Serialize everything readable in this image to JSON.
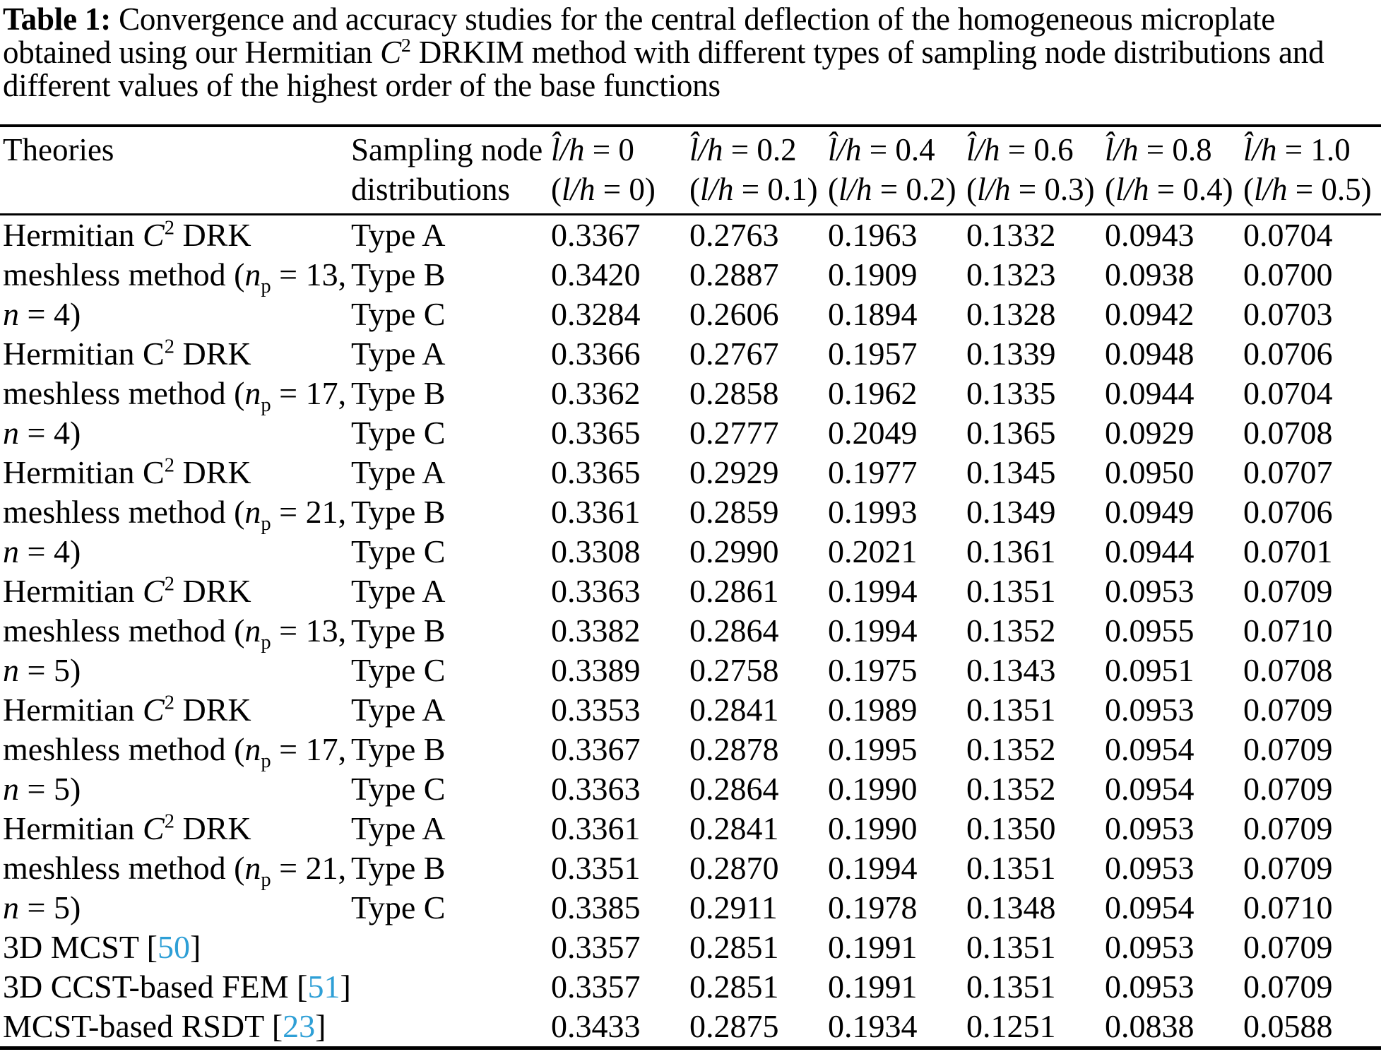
{
  "title": "**Table 1:** Convergence and accuracy studies for the central deflection of the homogeneous microplate obtained using our Hermitian *C*^2^ DRKIM method with different types of sampling node distributions and different values of the highest order of the base functions",
  "colors": {
    "ref_link": "#2e9fd6",
    "text": "#000000",
    "background": "#ffffff"
  },
  "table": {
    "col_headers": {
      "theories": "Theories",
      "sampling_line1": "Sampling node",
      "sampling_line2": "distributions",
      "data_cols": [
        {
          "line1": "*l̂/h* = 0",
          "line2": "(*l/h* = 0)"
        },
        {
          "line1": "*l̂/h* = 0.2",
          "line2": "(*l/h* = 0.1)"
        },
        {
          "line1": "*l̂/h* = 0.4",
          "line2": "(*l/h* = 0.2)"
        },
        {
          "line1": "*l̂/h* = 0.6",
          "line2": "(*l/h* = 0.3)"
        },
        {
          "line1": "*l̂/h* = 0.8",
          "line2": "(*l/h* = 0.4)"
        },
        {
          "line1": "*l̂/h* = 1.0",
          "line2": "(*l/h* = 0.5)"
        }
      ]
    },
    "groups": [
      {
        "theory_lines": [
          "Hermitian *C*^2^ DRK",
          "meshless method (*n*~p~ = 13,",
          "*n* = 4)"
        ],
        "rows": [
          {
            "type": "Type A",
            "values": [
              "0.3367",
              "0.2763",
              "0.1963",
              "0.1332",
              "0.0943",
              "0.0704"
            ]
          },
          {
            "type": "Type B",
            "values": [
              "0.3420",
              "0.2887",
              "0.1909",
              "0.1323",
              "0.0938",
              "0.0700"
            ]
          },
          {
            "type": "Type C",
            "values": [
              "0.3284",
              "0.2606",
              "0.1894",
              "0.1328",
              "0.0942",
              "0.0703"
            ]
          }
        ]
      },
      {
        "theory_lines": [
          "Hermitian C^2^ DRK",
          "meshless method (*n*~p~ = 17,",
          "*n* = 4)"
        ],
        "rows": [
          {
            "type": "Type A",
            "values": [
              "0.3366",
              "0.2767",
              "0.1957",
              "0.1339",
              "0.0948",
              "0.0706"
            ]
          },
          {
            "type": "Type B",
            "values": [
              "0.3362",
              "0.2858",
              "0.1962",
              "0.1335",
              "0.0944",
              "0.0704"
            ]
          },
          {
            "type": "Type C",
            "values": [
              "0.3365",
              "0.2777",
              "0.2049",
              "0.1365",
              "0.0929",
              "0.0708"
            ]
          }
        ]
      },
      {
        "theory_lines": [
          "Hermitian C^2^ DRK",
          "meshless method (*n*~p~ = 21,",
          "*n* = 4)"
        ],
        "rows": [
          {
            "type": "Type A",
            "values": [
              "0.3365",
              "0.2929",
              "0.1977",
              "0.1345",
              "0.0950",
              "0.0707"
            ]
          },
          {
            "type": "Type B",
            "values": [
              "0.3361",
              "0.2859",
              "0.1993",
              "0.1349",
              "0.0949",
              "0.0706"
            ]
          },
          {
            "type": "Type C",
            "values": [
              "0.3308",
              "0.2990",
              "0.2021",
              "0.1361",
              "0.0944",
              "0.0701"
            ]
          }
        ]
      },
      {
        "theory_lines": [
          "Hermitian *C*^2^ DRK",
          "meshless method (*n*~p~ = 13,",
          "*n* = 5)"
        ],
        "rows": [
          {
            "type": "Type A",
            "values": [
              "0.3363",
              "0.2861",
              "0.1994",
              "0.1351",
              "0.0953",
              "0.0709"
            ]
          },
          {
            "type": "Type B",
            "values": [
              "0.3382",
              "0.2864",
              "0.1994",
              "0.1352",
              "0.0955",
              "0.0710"
            ]
          },
          {
            "type": "Type C",
            "values": [
              "0.3389",
              "0.2758",
              "0.1975",
              "0.1343",
              "0.0951",
              "0.0708"
            ]
          }
        ]
      },
      {
        "theory_lines": [
          "Hermitian *C*^2^ DRK",
          "meshless method (*n*~p~ = 17,",
          "*n* = 5)"
        ],
        "rows": [
          {
            "type": "Type A",
            "values": [
              "0.3353",
              "0.2841",
              "0.1989",
              "0.1351",
              "0.0953",
              "0.0709"
            ]
          },
          {
            "type": "Type B",
            "values": [
              "0.3367",
              "0.2878",
              "0.1995",
              "0.1352",
              "0.0954",
              "0.0709"
            ]
          },
          {
            "type": "Type C",
            "values": [
              "0.3363",
              "0.2864",
              "0.1990",
              "0.1352",
              "0.0954",
              "0.0709"
            ]
          }
        ]
      },
      {
        "theory_lines": [
          "Hermitian *C*^2^ DRK",
          "meshless method (*n*~p~ = 21,",
          "*n* = 5)"
        ],
        "rows": [
          {
            "type": "Type A",
            "values": [
              "0.3361",
              "0.2841",
              "0.1990",
              "0.1350",
              "0.0953",
              "0.0709"
            ]
          },
          {
            "type": "Type B",
            "values": [
              "0.3351",
              "0.2870",
              "0.1994",
              "0.1351",
              "0.0953",
              "0.0709"
            ]
          },
          {
            "type": "Type C",
            "values": [
              "0.3385",
              "0.2911",
              "0.1978",
              "0.1348",
              "0.0954",
              "0.0710"
            ]
          }
        ]
      }
    ],
    "reference_rows": [
      {
        "label": "3D MCST [«50»]",
        "values": [
          "0.3357",
          "0.2851",
          "0.1991",
          "0.1351",
          "0.0953",
          "0.0709"
        ]
      },
      {
        "label": "3D CCST-based FEM [«51»]",
        "values": [
          "0.3357",
          "0.2851",
          "0.1991",
          "0.1351",
          "0.0953",
          "0.0709"
        ]
      },
      {
        "label": "MCST-based RSDT [«23»]",
        "values": [
          "0.3433",
          "0.2875",
          "0.1934",
          "0.1251",
          "0.0838",
          "0.0588"
        ]
      }
    ]
  }
}
